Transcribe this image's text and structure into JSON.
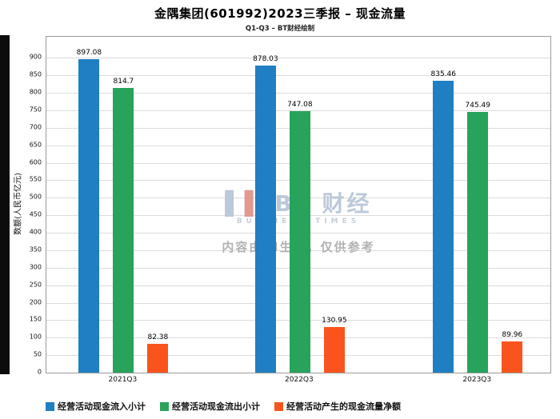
{
  "title": "金隅集团(601992)2023三季报 – 现金流量",
  "subtitle": "Q1-Q3 – BT财经绘制",
  "watermark": {
    "logo_bar_blue": "▌",
    "logo_bar_red": "▌",
    "logo_text": "BT 财经",
    "logo_sub": "BUSINESS TIMES",
    "disclaimer": "内容由AI生成，仅供参考"
  },
  "chart_data": {
    "type": "bar",
    "title": "金隅集团(601992)2023三季报 – 现金流量",
    "subtitle": "Q1-Q3 – BT财经绘制",
    "categories": [
      "2021Q3",
      "2022Q3",
      "2023Q3"
    ],
    "series": [
      {
        "name": "经营活动现金流入小计",
        "color": "#1f7fc2",
        "values": [
          897.08,
          878.03,
          835.46
        ]
      },
      {
        "name": "经营活动现金流出小计",
        "color": "#28a35c",
        "values": [
          814.7,
          747.08,
          745.49
        ]
      },
      {
        "name": "经营活动产生的现金流量净额",
        "color": "#f9541e",
        "values": [
          82.38,
          130.95,
          89.96
        ]
      }
    ],
    "xlabel": "",
    "ylabel": "数额(人民币亿元)",
    "ylim": [
      0,
      900
    ],
    "ytick_step": 50,
    "plot_max": 960,
    "grid": true,
    "legend_position": "bottom",
    "group_centers": [
      0.153,
      0.503,
      0.856
    ],
    "axis_text_color": "#111111",
    "gridline_color": "#dcdcdc"
  }
}
